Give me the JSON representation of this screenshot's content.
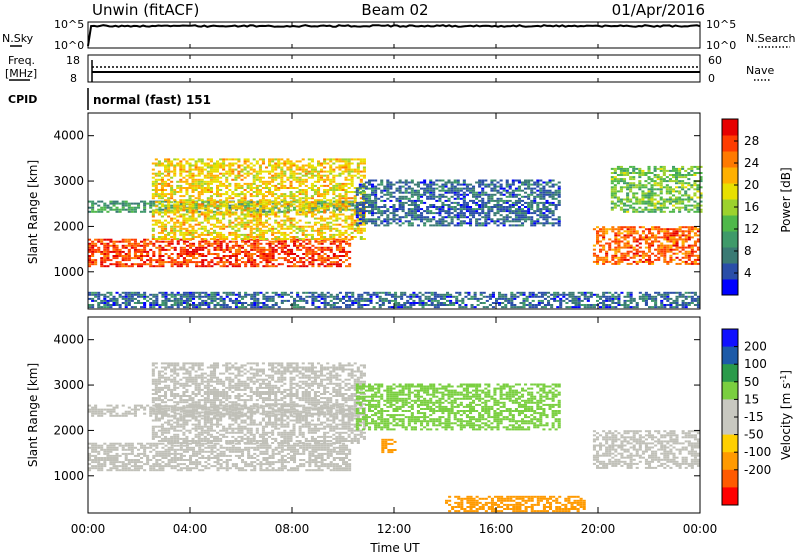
{
  "header": {
    "station": "Unwin (fitACF)",
    "beam": "Beam 02",
    "date": "01/Apr/2016"
  },
  "panels": {
    "nsky_label": "N.Sky",
    "nsky_ticks": [
      "10^5",
      "10^0"
    ],
    "nsearch_label": "N.Search",
    "nsearch_ticks": [
      "10^5",
      "10^0"
    ],
    "freq_label_1": "Freq.",
    "freq_label_2": "[MHz]",
    "freq_ticks": [
      "18",
      "8"
    ],
    "nave_label": "Nave",
    "nave_ticks": [
      "60",
      "0"
    ],
    "cpid_label": "CPID",
    "cpid_value": "normal (fast) 151"
  },
  "colors": {
    "power_scale": [
      "#0000ff",
      "#2a4ea8",
      "#3a7a74",
      "#3f9a6a",
      "#4fb84a",
      "#9cd22e",
      "#e8e000",
      "#ffb000",
      "#ff7a00",
      "#ff3c00",
      "#e60000"
    ],
    "velocity_scale": [
      "#ff0000",
      "#ff5a00",
      "#ff9a00",
      "#ffd000",
      "#c8c8c0",
      "#c8c8c0",
      "#7acf40",
      "#2a9a4a",
      "#1c6a8c",
      "#1a3aa8",
      "#1010ff"
    ],
    "ground_scatter": "#c0c0b8"
  },
  "chart_data": [
    {
      "type": "heatmap",
      "name": "power",
      "ylabel": "Slant Range [km]",
      "yticks": [
        1000,
        2000,
        3000,
        4000
      ],
      "ylim": [
        180,
        4500
      ],
      "xlim": [
        0,
        24
      ],
      "colorbar": {
        "label": "Power [dB]",
        "ticks": [
          4,
          8,
          12,
          16,
          20,
          24,
          28
        ],
        "range": [
          0,
          32
        ]
      },
      "regions": [
        {
          "t0": 0,
          "t1": 10.2,
          "r0": 1100,
          "r1": 1700,
          "value": 28
        },
        {
          "t0": 0,
          "t1": 10.5,
          "r0": 2300,
          "r1": 2550,
          "value": 10
        },
        {
          "t0": 2.5,
          "t1": 10.8,
          "r0": 1700,
          "r1": 3500,
          "value": 20
        },
        {
          "t0": 10.5,
          "t1": 18.5,
          "r0": 2000,
          "r1": 3000,
          "value": 6
        },
        {
          "t0": 19.8,
          "t1": 24,
          "r0": 1150,
          "r1": 2000,
          "value": 26
        },
        {
          "t0": 20.5,
          "t1": 24,
          "r0": 2300,
          "r1": 3300,
          "value": 14
        },
        {
          "t0": 0,
          "t1": 24,
          "r0": 200,
          "r1": 550,
          "value": 6
        }
      ]
    },
    {
      "type": "heatmap",
      "name": "velocity",
      "ylabel": "Slant Range [km]",
      "xlabel": "Time UT",
      "xticks": [
        "00:00",
        "04:00",
        "08:00",
        "12:00",
        "16:00",
        "20:00",
        "00:00"
      ],
      "yticks": [
        1000,
        2000,
        3000,
        4000
      ],
      "ylim": [
        180,
        4500
      ],
      "xlim": [
        0,
        24
      ],
      "colorbar": {
        "label": "Velocity [m s",
        "label_superscript": "-1",
        "label_close": "]",
        "ticks": [
          "200",
          "100",
          "50",
          "15",
          "-15",
          "-50",
          "-100",
          "-200"
        ]
      },
      "regions": [
        {
          "t0": 0,
          "t1": 10.2,
          "r0": 1100,
          "r1": 1700,
          "value": 0
        },
        {
          "t0": 0,
          "t1": 10.5,
          "r0": 2300,
          "r1": 2550,
          "value": 0
        },
        {
          "t0": 2.5,
          "t1": 10.8,
          "r0": 1700,
          "r1": 3500,
          "value": 0
        },
        {
          "t0": 11.5,
          "t1": 12,
          "r0": 1500,
          "r1": 1800,
          "value": -60
        },
        {
          "t0": 10.5,
          "t1": 18.5,
          "r0": 2000,
          "r1": 3000,
          "value": 20
        },
        {
          "t0": 19.8,
          "t1": 24,
          "r0": 1150,
          "r1": 2000,
          "value": 0
        },
        {
          "t0": 14,
          "t1": 19.5,
          "r0": 200,
          "r1": 550,
          "value": -60
        }
      ]
    }
  ]
}
